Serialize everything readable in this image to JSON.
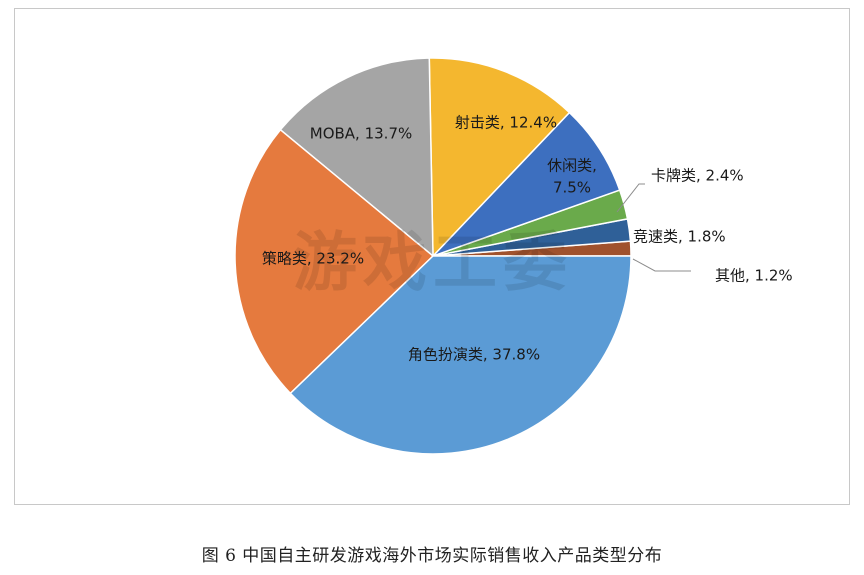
{
  "caption": "图 6  中国自主研发游戏海外市场实际销售收入产品类型分布",
  "watermark": "游戏工委",
  "chart_data": {
    "type": "pie",
    "start_angle_deg": 0,
    "direction": "counterclockwise",
    "slices": [
      {
        "name": "其他",
        "value": 1.2,
        "label": "其他, 1.2%",
        "color": "#a0522d",
        "label_style": "leader"
      },
      {
        "name": "竞速类",
        "value": 1.8,
        "label": "竞速类, 1.8%",
        "color": "#2f6098",
        "label_style": "leader"
      },
      {
        "name": "卡牌类",
        "value": 2.4,
        "label": "卡牌类, 2.4%",
        "color": "#6aaa4b",
        "label_style": "leader"
      },
      {
        "name": "休闲类",
        "value": 7.5,
        "label": "休闲类,\n7.5%",
        "color": "#3d6fbf",
        "label_style": "inside"
      },
      {
        "name": "射击类",
        "value": 12.4,
        "label": "射击类, 12.4%",
        "color": "#f4b72f",
        "label_style": "inside"
      },
      {
        "name": "MOBA",
        "value": 13.7,
        "label": "MOBA, 13.7%",
        "color": "#a5a5a5",
        "label_style": "inside"
      },
      {
        "name": "策略类",
        "value": 23.2,
        "label": "策略类, 23.2%",
        "color": "#e57a3e",
        "label_style": "inside"
      },
      {
        "name": "角色扮演类",
        "value": 37.8,
        "label": "角色扮演类, 37.8%",
        "color": "#5b9bd5",
        "label_style": "inside"
      }
    ]
  }
}
